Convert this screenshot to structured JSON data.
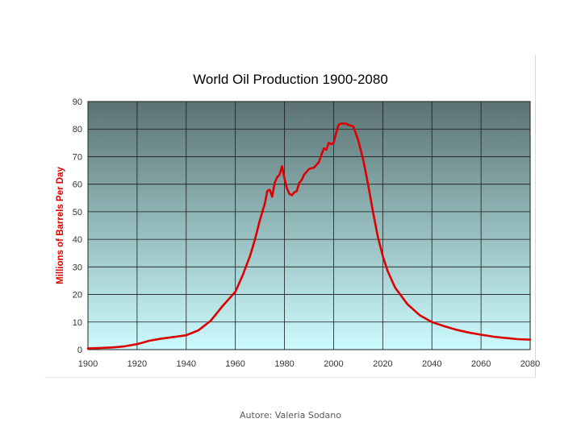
{
  "chart_data": {
    "type": "line",
    "title": "World Oil Production 1900-2080",
    "xlabel": "",
    "ylabel": "Millions of Barrels Per Day",
    "xlim": [
      1900,
      2080
    ],
    "ylim": [
      0,
      90
    ],
    "x_ticks": [
      1900,
      1920,
      1940,
      1960,
      1980,
      2000,
      2020,
      2040,
      2060,
      2080
    ],
    "y_ticks": [
      0,
      10,
      20,
      30,
      40,
      50,
      60,
      70,
      80,
      90
    ],
    "grid": true,
    "legend": "none",
    "series": [
      {
        "name": "World Oil Production",
        "color": "#dd0000",
        "x": [
          1900,
          1905,
          1910,
          1915,
          1920,
          1925,
          1930,
          1935,
          1940,
          1945,
          1950,
          1955,
          1958,
          1960,
          1963,
          1966,
          1968,
          1970,
          1972,
          1973,
          1974,
          1975,
          1976,
          1977,
          1978,
          1979,
          1980,
          1981,
          1982,
          1983,
          1984,
          1985,
          1986,
          1987,
          1988,
          1990,
          1992,
          1994,
          1995,
          1996,
          1997,
          1998,
          1999,
          2000,
          2001,
          2002,
          2003,
          2004,
          2005,
          2006,
          2008,
          2010,
          2012,
          2014,
          2016,
          2018,
          2020,
          2022,
          2025,
          2030,
          2035,
          2040,
          2045,
          2050,
          2055,
          2060,
          2065,
          2070,
          2075,
          2080
        ],
        "values": [
          0.4,
          0.6,
          0.8,
          1.2,
          2.0,
          3.2,
          4.0,
          4.6,
          5.2,
          7.0,
          10.5,
          16.0,
          19.0,
          21.0,
          27.0,
          34.0,
          40.0,
          47.0,
          53.0,
          57.5,
          58.0,
          55.5,
          60.5,
          62.5,
          63.5,
          66.5,
          62.0,
          58.5,
          56.5,
          56.0,
          57.0,
          57.5,
          60.5,
          61.5,
          63.5,
          65.5,
          66.0,
          68.0,
          70.5,
          73.0,
          72.5,
          75.0,
          74.5,
          75.0,
          78.5,
          81.5,
          82.0,
          82.0,
          82.0,
          81.5,
          81.0,
          76.0,
          69.0,
          60.0,
          50.0,
          41.0,
          34.0,
          28.5,
          22.5,
          16.5,
          12.5,
          10.0,
          8.5,
          7.2,
          6.2,
          5.4,
          4.7,
          4.2,
          3.8,
          3.6
        ]
      }
    ]
  },
  "footer": {
    "author": "Autore: Valeria Sodano"
  }
}
